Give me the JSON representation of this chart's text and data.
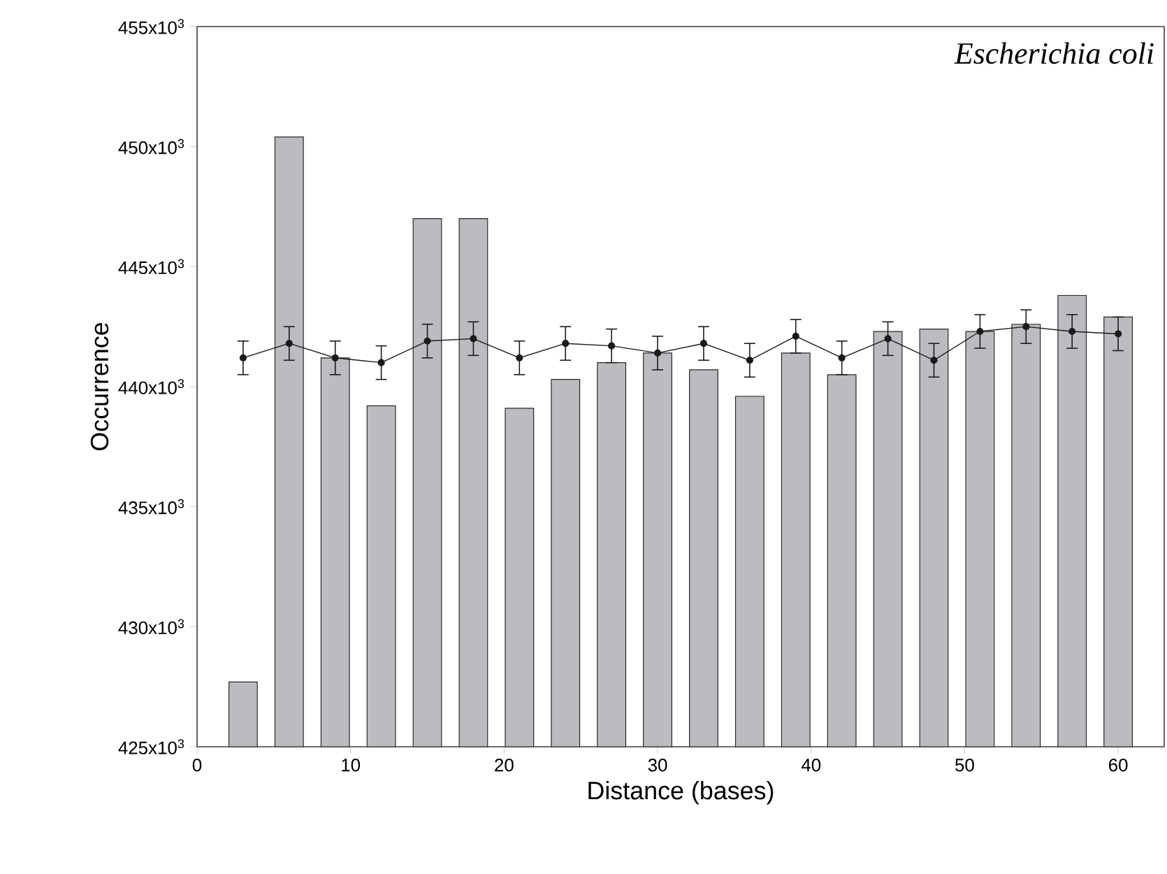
{
  "chart_data": {
    "type": "bar",
    "xlabel": "Distance (bases)",
    "ylabel": "Occurrence",
    "annotations": [
      "Escherichia coli"
    ],
    "x": [
      3,
      6,
      9,
      12,
      15,
      18,
      21,
      24,
      27,
      30,
      33,
      36,
      39,
      42,
      45,
      48,
      51,
      54,
      57,
      60
    ],
    "series": [
      {
        "color": "#bbbcc0",
        "values": [
          427700,
          450400,
          441200,
          439200,
          447000,
          447000,
          439100,
          440300,
          441000,
          441400,
          440700,
          439600,
          441400,
          440500,
          442300,
          442400,
          442300,
          442600,
          443800,
          442900
        ]
      },
      {
        "type": "line",
        "color": "#1a1a1a",
        "marker": "circle",
        "values": [
          441200,
          441800,
          441200,
          441000,
          441900,
          442000,
          441200,
          441800,
          441700,
          441400,
          441800,
          441100,
          442100,
          441200,
          442000,
          441100,
          442300,
          442500,
          442300,
          442200
        ],
        "errors": [
          700,
          700,
          700,
          700,
          700,
          700,
          700,
          700,
          700,
          700,
          700,
          700,
          700,
          700,
          700,
          700,
          700,
          700,
          700,
          700
        ]
      }
    ],
    "xlim": [
      0,
      63
    ],
    "xticks": [
      0,
      10,
      20,
      30,
      40,
      50,
      60
    ],
    "ylim": [
      425000,
      455000
    ],
    "yticks": [
      {
        "value": 425000,
        "label": "425x10$^{3}$"
      },
      {
        "value": 430000,
        "label": "430x10$^{3}$"
      },
      {
        "value": 435000,
        "label": "435x10$^{3}$"
      },
      {
        "value": 440000,
        "label": "440x10$^{3}$"
      },
      {
        "value": 445000,
        "label": "445x10$^{3}$"
      },
      {
        "value": 450000,
        "label": "450x10$^{3}$"
      },
      {
        "value": 455000,
        "label": "455x10$^{3}$"
      }
    ],
    "grid": false
  }
}
